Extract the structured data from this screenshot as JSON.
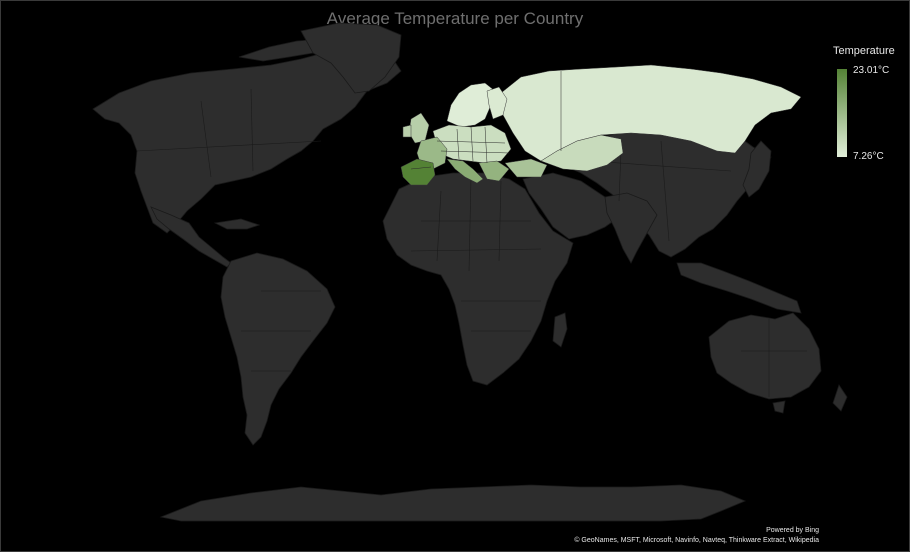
{
  "title": "Average Temperature per Country",
  "legend": {
    "title": "Temperature",
    "max_label": "23.01°C",
    "min_label": "7.26°C",
    "min_color": "#e2efda",
    "max_color": "#548235"
  },
  "attribution": {
    "powered_by": "Powered by Bing",
    "credits": "© GeoNames, MSFT, Microsoft, Navinfo, Navteq, Thinkware Extract, Wikipedia"
  },
  "colors": {
    "background": "#000000",
    "land_no_data": "#2d2d2d",
    "title_text": "#6f6f6f"
  },
  "chart_data": {
    "type": "choropleth",
    "value_range": [
      7.26,
      23.01
    ],
    "unit": "°C"
  }
}
